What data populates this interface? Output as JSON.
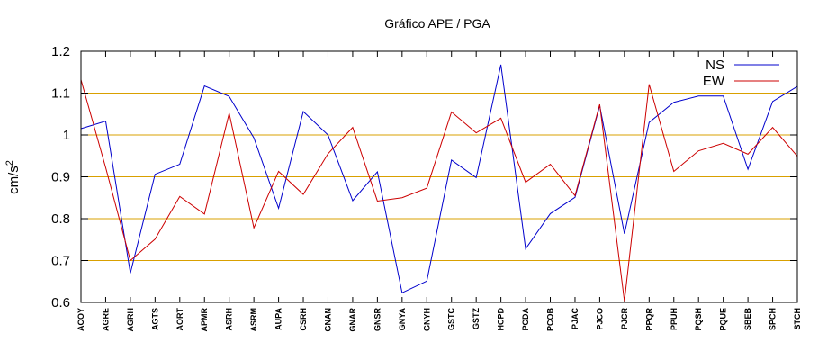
{
  "chart_data": {
    "type": "line",
    "title": "Gráfico  APE / PGA",
    "xlabel": "",
    "ylabel": "cm/s",
    "ylabel_superscript": "2",
    "ylim": [
      0.6,
      1.2
    ],
    "yticks": [
      0.6,
      0.7,
      0.8,
      0.9,
      1.0,
      1.1,
      1.2
    ],
    "ytick_labels": [
      "0.6",
      "0.7",
      "0.8",
      "0.9",
      "1",
      "1.1",
      "1.2"
    ],
    "grid": "horizontal",
    "legend_position": "top-right",
    "categories": [
      "ACOY",
      "AGRE",
      "AGRH",
      "AGTS",
      "AORT",
      "APMR",
      "ASRH",
      "ASRM",
      "AUPA",
      "CSRH",
      "GNAN",
      "GNAR",
      "GNSR",
      "GNYA",
      "GNYH",
      "GSTC",
      "GSTZ",
      "HCPD",
      "PCDA",
      "PCOB",
      "PJAC",
      "PJCO",
      "PJCR",
      "PPQR",
      "PPUH",
      "PQSH",
      "PQUE",
      "SBEB",
      "SPCH",
      "STCH"
    ],
    "series": [
      {
        "name": "NS",
        "color": "#0000cc",
        "values": [
          1.015,
          1.033,
          0.67,
          0.906,
          0.93,
          1.117,
          1.092,
          0.993,
          0.825,
          1.056,
          1.0,
          0.843,
          0.912,
          0.623,
          0.651,
          0.94,
          0.898,
          1.168,
          0.728,
          0.812,
          0.851,
          1.07,
          0.764,
          1.03,
          1.078,
          1.093,
          1.093,
          0.918,
          1.08,
          1.116
        ]
      },
      {
        "name": "EW",
        "color": "#cc0000",
        "values": [
          1.132,
          0.922,
          0.7,
          0.751,
          0.853,
          0.811,
          1.052,
          0.778,
          0.913,
          0.858,
          0.955,
          1.018,
          0.842,
          0.85,
          0.873,
          1.055,
          1.005,
          1.04,
          0.887,
          0.93,
          0.855,
          1.073,
          0.603,
          1.121,
          0.913,
          0.962,
          0.98,
          0.954,
          1.018,
          0.949
        ]
      }
    ]
  }
}
